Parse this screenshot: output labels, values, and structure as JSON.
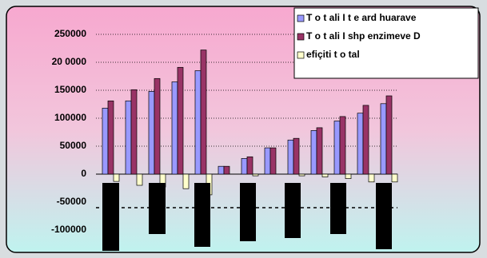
{
  "chart_data": {
    "type": "bar",
    "categories": [
      null,
      null,
      null,
      null,
      null,
      null,
      null,
      null,
      null,
      null,
      null,
      null,
      null
    ],
    "series": [
      {
        "name": "T o t ali I t e ard huarave",
        "color": "#9999ff",
        "values": [
          118000,
          131000,
          148000,
          165000,
          185000,
          14000,
          28000,
          47000,
          61000,
          78000,
          95000,
          109000,
          126000
        ]
      },
      {
        "name": "T o t ali I shp enzimeve D",
        "color": "#993366",
        "values": [
          131000,
          151000,
          171000,
          191000,
          222000,
          14000,
          31000,
          47000,
          64000,
          83000,
          103000,
          123000,
          140000
        ]
      },
      {
        "name": "efiçiti t o tal",
        "color": "#ffffcc",
        "values": [
          -13000,
          -20000,
          -23000,
          -26000,
          -37000,
          0,
          -3000,
          0,
          -3000,
          -5000,
          -8000,
          -14000,
          -14000
        ]
      }
    ],
    "ylim": [
      -130000,
      270000
    ],
    "yticks": [
      -100000,
      -50000,
      0,
      50000,
      100000,
      150000,
      {
        "value": 200000,
        "label": "20 0000"
      },
      250000
    ],
    "grid": true,
    "legend": "top-right"
  }
}
